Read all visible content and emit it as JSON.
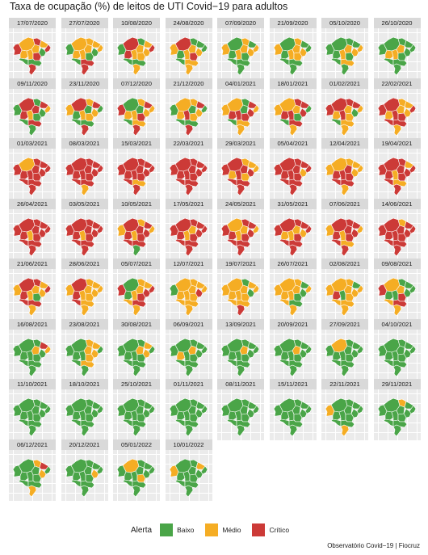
{
  "chart_data": {
    "type": "choropleth-small-multiples",
    "title": "Taxa de ocupação (%) de leitos de UTI Covid−19 para adultos",
    "caption": "Observatório Covid−19 | Fiocruz",
    "legend": {
      "title": "Alerta",
      "position": "bottom",
      "categories": [
        {
          "label": "Baixo",
          "color": "#4aa548"
        },
        {
          "label": "Médio",
          "color": "#f5ad24"
        },
        {
          "label": "Crítico",
          "color": "#cc3a37"
        }
      ]
    },
    "panels": [
      {
        "date": "17/07/2020",
        "dominant": "Médio",
        "mix": [
          0.35,
          0.35,
          0.3
        ]
      },
      {
        "date": "27/07/2020",
        "dominant": "Médio",
        "mix": [
          0.3,
          0.45,
          0.25
        ]
      },
      {
        "date": "10/08/2020",
        "dominant": "Médio",
        "mix": [
          0.35,
          0.4,
          0.25
        ]
      },
      {
        "date": "24/08/2020",
        "dominant": "Baixo",
        "mix": [
          0.45,
          0.4,
          0.15
        ]
      },
      {
        "date": "07/09/2020",
        "dominant": "Baixo",
        "mix": [
          0.5,
          0.45,
          0.05
        ]
      },
      {
        "date": "21/09/2020",
        "dominant": "Baixo",
        "mix": [
          0.55,
          0.4,
          0.05
        ]
      },
      {
        "date": "05/10/2020",
        "dominant": "Baixo",
        "mix": [
          0.6,
          0.35,
          0.05
        ]
      },
      {
        "date": "26/10/2020",
        "dominant": "Baixo",
        "mix": [
          0.65,
          0.3,
          0.05
        ]
      },
      {
        "date": "09/11/2020",
        "dominant": "Baixo",
        "mix": [
          0.55,
          0.2,
          0.25
        ]
      },
      {
        "date": "23/11/2020",
        "dominant": "Médio",
        "mix": [
          0.35,
          0.5,
          0.15
        ]
      },
      {
        "date": "07/12/2020",
        "dominant": "Médio",
        "mix": [
          0.25,
          0.55,
          0.2
        ]
      },
      {
        "date": "21/12/2020",
        "dominant": "Médio",
        "mix": [
          0.2,
          0.5,
          0.3
        ]
      },
      {
        "date": "04/01/2021",
        "dominant": "Médio",
        "mix": [
          0.25,
          0.45,
          0.3
        ]
      },
      {
        "date": "18/01/2021",
        "dominant": "Médio",
        "mix": [
          0.15,
          0.45,
          0.4
        ]
      },
      {
        "date": "01/02/2021",
        "dominant": "Médio",
        "mix": [
          0.15,
          0.45,
          0.4
        ]
      },
      {
        "date": "22/02/2021",
        "dominant": "Médio",
        "mix": [
          0.05,
          0.5,
          0.45
        ]
      },
      {
        "date": "01/03/2021",
        "dominant": "Crítico",
        "mix": [
          0.0,
          0.1,
          0.9
        ]
      },
      {
        "date": "08/03/2021",
        "dominant": "Crítico",
        "mix": [
          0.0,
          0.05,
          0.95
        ]
      },
      {
        "date": "15/03/2021",
        "dominant": "Crítico",
        "mix": [
          0.0,
          0.03,
          0.97
        ]
      },
      {
        "date": "22/03/2021",
        "dominant": "Crítico",
        "mix": [
          0.0,
          0.03,
          0.97
        ]
      },
      {
        "date": "29/03/2021",
        "dominant": "Médio",
        "mix": [
          0.0,
          0.55,
          0.45
        ]
      },
      {
        "date": "05/04/2021",
        "dominant": "Crítico",
        "mix": [
          0.0,
          0.1,
          0.9
        ]
      },
      {
        "date": "12/04/2021",
        "dominant": "Médio",
        "mix": [
          0.0,
          0.5,
          0.5
        ]
      },
      {
        "date": "19/04/2021",
        "dominant": "Crítico",
        "mix": [
          0.0,
          0.15,
          0.85
        ]
      },
      {
        "date": "26/04/2021",
        "dominant": "Crítico",
        "mix": [
          0.0,
          0.1,
          0.9
        ]
      },
      {
        "date": "03/05/2021",
        "dominant": "Crítico",
        "mix": [
          0.0,
          0.1,
          0.9
        ]
      },
      {
        "date": "10/05/2021",
        "dominant": "Crítico",
        "mix": [
          0.05,
          0.2,
          0.75
        ]
      },
      {
        "date": "17/05/2021",
        "dominant": "Crítico",
        "mix": [
          0.0,
          0.15,
          0.85
        ]
      },
      {
        "date": "24/05/2021",
        "dominant": "Crítico",
        "mix": [
          0.0,
          0.2,
          0.8
        ]
      },
      {
        "date": "31/05/2021",
        "dominant": "Crítico",
        "mix": [
          0.0,
          0.15,
          0.85
        ]
      },
      {
        "date": "07/06/2021",
        "dominant": "Crítico",
        "mix": [
          0.0,
          0.15,
          0.85
        ]
      },
      {
        "date": "14/06/2021",
        "dominant": "Crítico",
        "mix": [
          0.0,
          0.1,
          0.9
        ]
      },
      {
        "date": "21/06/2021",
        "dominant": "Médio",
        "mix": [
          0.05,
          0.55,
          0.4
        ]
      },
      {
        "date": "28/06/2021",
        "dominant": "Médio",
        "mix": [
          0.1,
          0.6,
          0.3
        ]
      },
      {
        "date": "05/07/2021",
        "dominant": "Médio",
        "mix": [
          0.15,
          0.6,
          0.25
        ]
      },
      {
        "date": "12/07/2021",
        "dominant": "Médio",
        "mix": [
          0.05,
          0.8,
          0.15
        ]
      },
      {
        "date": "19/07/2021",
        "dominant": "Médio",
        "mix": [
          0.15,
          0.75,
          0.1
        ]
      },
      {
        "date": "26/07/2021",
        "dominant": "Médio",
        "mix": [
          0.25,
          0.6,
          0.15
        ]
      },
      {
        "date": "02/08/2021",
        "dominant": "Médio",
        "mix": [
          0.3,
          0.55,
          0.15
        ]
      },
      {
        "date": "09/08/2021",
        "dominant": "Baixo",
        "mix": [
          0.5,
          0.35,
          0.15
        ]
      },
      {
        "date": "16/08/2021",
        "dominant": "Baixo",
        "mix": [
          0.7,
          0.25,
          0.05
        ]
      },
      {
        "date": "23/08/2021",
        "dominant": "Baixo",
        "mix": [
          0.75,
          0.2,
          0.05
        ]
      },
      {
        "date": "30/08/2021",
        "dominant": "Baixo",
        "mix": [
          0.75,
          0.2,
          0.05
        ]
      },
      {
        "date": "06/09/2021",
        "dominant": "Baixo",
        "mix": [
          0.85,
          0.15,
          0.0
        ]
      },
      {
        "date": "13/09/2021",
        "dominant": "Baixo",
        "mix": [
          0.9,
          0.1,
          0.0
        ]
      },
      {
        "date": "20/09/2021",
        "dominant": "Baixo",
        "mix": [
          0.95,
          0.05,
          0.0
        ]
      },
      {
        "date": "27/09/2021",
        "dominant": "Baixo",
        "mix": [
          0.95,
          0.05,
          0.0
        ]
      },
      {
        "date": "04/10/2021",
        "dominant": "Baixo",
        "mix": [
          0.97,
          0.03,
          0.0
        ]
      },
      {
        "date": "11/10/2021",
        "dominant": "Baixo",
        "mix": [
          1.0,
          0.0,
          0.0
        ]
      },
      {
        "date": "18/10/2021",
        "dominant": "Baixo",
        "mix": [
          1.0,
          0.0,
          0.0
        ]
      },
      {
        "date": "25/10/2021",
        "dominant": "Baixo",
        "mix": [
          1.0,
          0.0,
          0.0
        ]
      },
      {
        "date": "01/11/2021",
        "dominant": "Baixo",
        "mix": [
          1.0,
          0.0,
          0.0
        ]
      },
      {
        "date": "08/11/2021",
        "dominant": "Baixo",
        "mix": [
          1.0,
          0.0,
          0.0
        ]
      },
      {
        "date": "15/11/2021",
        "dominant": "Baixo",
        "mix": [
          1.0,
          0.0,
          0.0
        ]
      },
      {
        "date": "22/11/2021",
        "dominant": "Baixo",
        "mix": [
          0.9,
          0.1,
          0.0
        ]
      },
      {
        "date": "29/11/2021",
        "dominant": "Baixo",
        "mix": [
          0.9,
          0.1,
          0.0
        ]
      },
      {
        "date": "06/12/2021",
        "dominant": "Baixo",
        "mix": [
          0.7,
          0.15,
          0.15
        ]
      },
      {
        "date": "20/12/2021",
        "dominant": "Baixo",
        "mix": [
          0.9,
          0.1,
          0.0
        ]
      },
      {
        "date": "05/01/2022",
        "dominant": "Baixo",
        "mix": [
          0.85,
          0.15,
          0.0
        ]
      },
      {
        "date": "10/01/2022",
        "dominant": "Baixo",
        "mix": [
          0.75,
          0.2,
          0.05
        ]
      }
    ]
  }
}
